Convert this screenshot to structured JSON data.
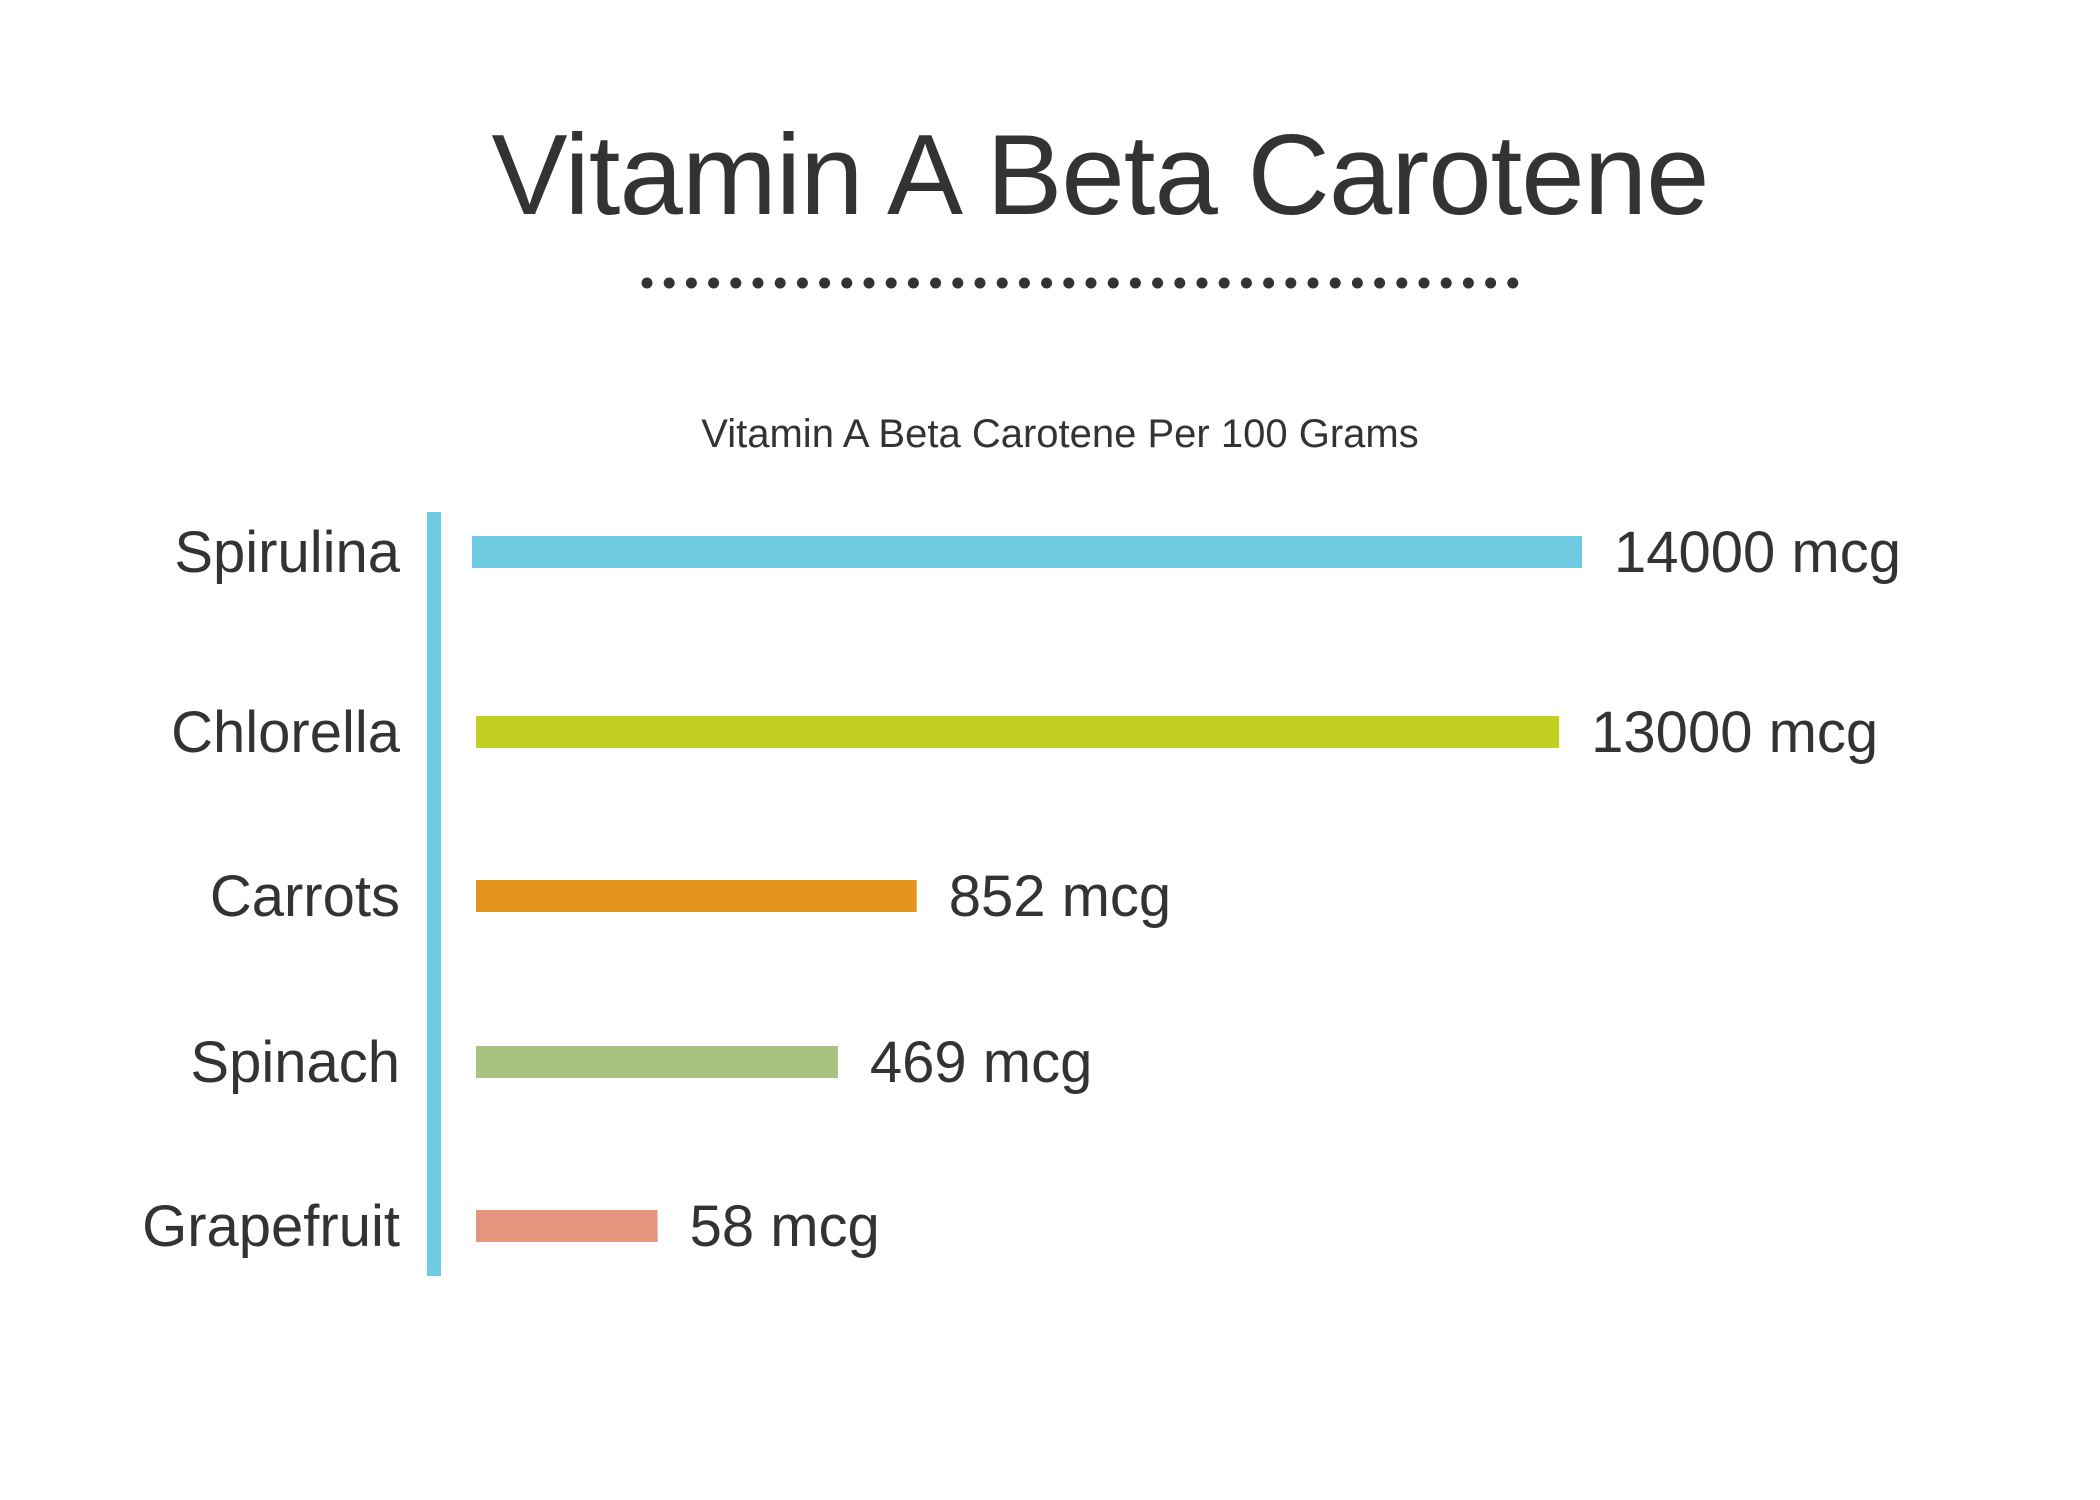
{
  "header": {
    "title": "Vitamin A Beta Carotene"
  },
  "chart_data": {
    "type": "bar",
    "orientation": "horizontal",
    "title": "Vitamin A Beta Carotene Per 100 Grams",
    "unit": "mcg",
    "categories": [
      "Spirulina",
      "Chlorella",
      "Carrots",
      "Spinach",
      "Grapefruit"
    ],
    "values": [
      14000,
      13000,
      852,
      469,
      58
    ],
    "value_labels": [
      "14000 mcg",
      "13000 mcg",
      "852 mcg",
      "469 mcg",
      "58 mcg"
    ],
    "colors": [
      "#6ecbe2",
      "#c1d021",
      "#e5941c",
      "#a9c281",
      "#e5957e"
    ],
    "axis_color": "#6ecbe2",
    "grid": false,
    "legend": "none"
  }
}
